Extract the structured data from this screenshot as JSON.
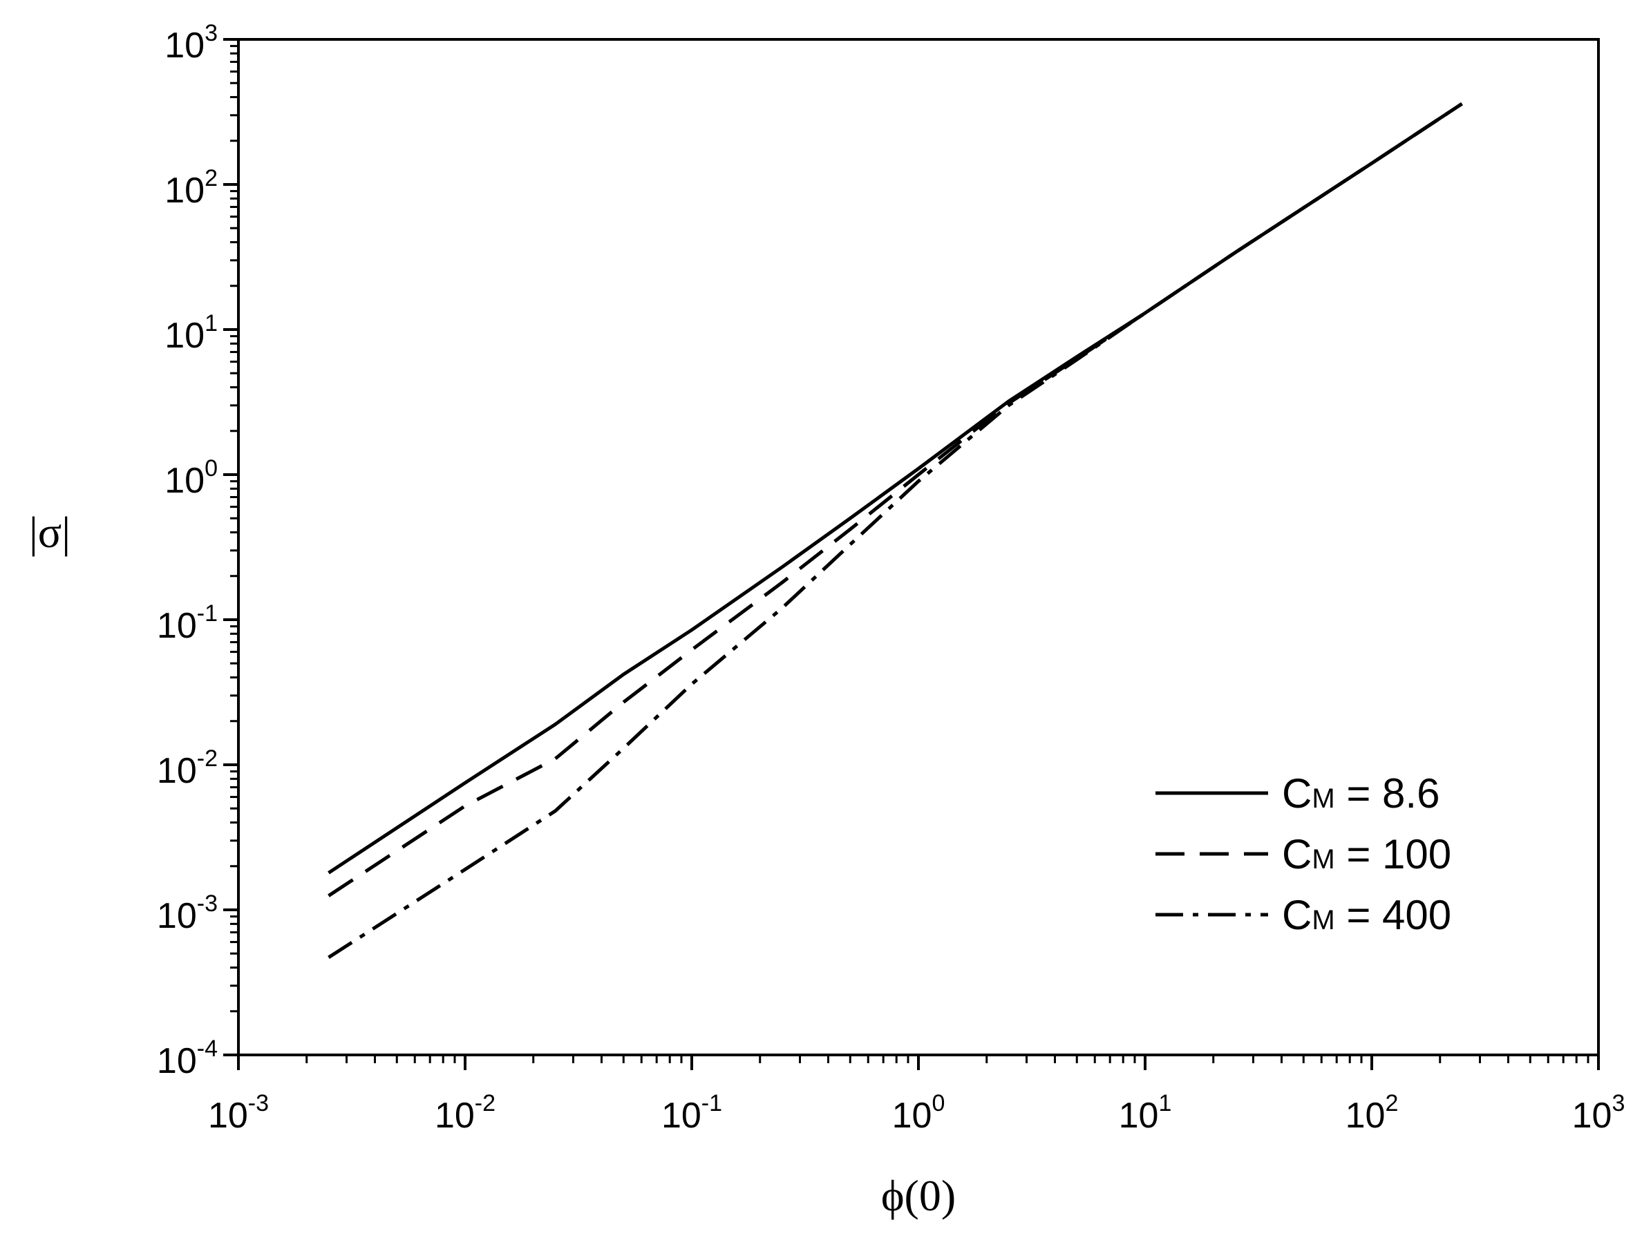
{
  "chart_data": {
    "type": "line",
    "title": "",
    "xlabel": "ϕ(0)",
    "ylabel": "|σ|",
    "xscale": "log",
    "yscale": "log",
    "xlim": [
      0.001,
      1000
    ],
    "ylim": [
      0.0001,
      1000
    ],
    "grid": false,
    "legend_position": "bottom-right",
    "x_ticks": [
      {
        "base": "10",
        "exp": "-3"
      },
      {
        "base": "10",
        "exp": "-2"
      },
      {
        "base": "10",
        "exp": "-1"
      },
      {
        "base": "10",
        "exp": "0"
      },
      {
        "base": "10",
        "exp": "1"
      },
      {
        "base": "10",
        "exp": "2"
      },
      {
        "base": "10",
        "exp": "3"
      }
    ],
    "y_ticks": [
      {
        "base": "10",
        "exp": "-4"
      },
      {
        "base": "10",
        "exp": "-3"
      },
      {
        "base": "10",
        "exp": "-2"
      },
      {
        "base": "10",
        "exp": "-1"
      },
      {
        "base": "10",
        "exp": "0"
      },
      {
        "base": "10",
        "exp": "1"
      },
      {
        "base": "10",
        "exp": "2"
      },
      {
        "base": "10",
        "exp": "3"
      }
    ],
    "series": [
      {
        "name": "8.6",
        "legend_prefix": "C",
        "legend_subscript": "M",
        "legend_suffix": " = 8.6",
        "dash": "solid",
        "x": [
          0.0025,
          0.01,
          0.025,
          0.05,
          0.1,
          0.25,
          0.5,
          1.0,
          2.5,
          5,
          10,
          25,
          100,
          250
        ],
        "y": [
          0.0018,
          0.0075,
          0.019,
          0.042,
          0.085,
          0.23,
          0.5,
          1.1,
          3.2,
          6.5,
          13,
          34,
          140,
          360
        ]
      },
      {
        "name": "100",
        "legend_prefix": "C",
        "legend_subscript": "M",
        "legend_suffix": " = 100",
        "dash": "dashed",
        "x": [
          0.0025,
          0.01,
          0.025,
          0.05,
          0.1,
          0.25,
          0.5,
          1.0,
          2.5,
          5,
          10,
          25,
          100,
          250
        ],
        "y": [
          0.00125,
          0.0052,
          0.011,
          0.027,
          0.062,
          0.18,
          0.42,
          1.0,
          3.1,
          6.3,
          13,
          34,
          140,
          360
        ]
      },
      {
        "name": "400",
        "legend_prefix": "C",
        "legend_subscript": "M",
        "legend_suffix": " = 400",
        "dash": "dashdot",
        "x": [
          0.0025,
          0.01,
          0.025,
          0.05,
          0.1,
          0.25,
          0.5,
          1.0,
          2.5,
          5,
          10,
          25,
          100,
          250
        ],
        "y": [
          0.00047,
          0.0019,
          0.0048,
          0.013,
          0.036,
          0.12,
          0.33,
          0.9,
          3.0,
          6.2,
          13,
          34,
          140,
          360
        ]
      }
    ]
  }
}
